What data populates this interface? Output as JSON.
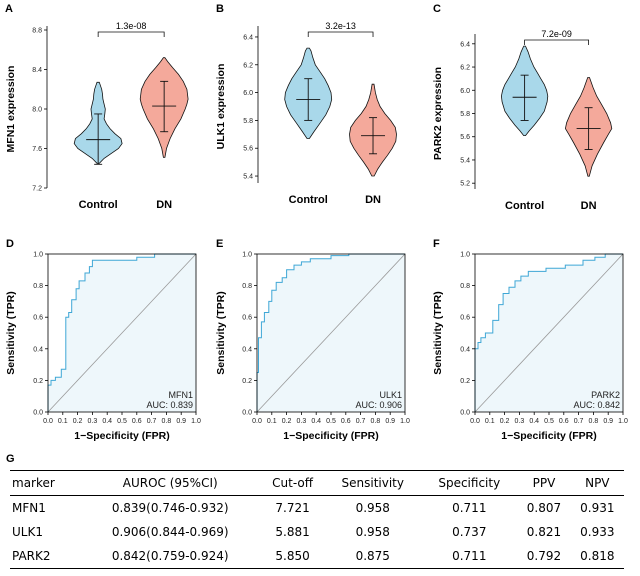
{
  "chart_data": [
    {
      "type": "violin",
      "panel": "A",
      "ylabel": "MFN1 expression",
      "categories": [
        "Control",
        "DN"
      ],
      "ylim": [
        7.2,
        8.8
      ],
      "yticks": [
        "7.2",
        "7.6",
        "8.0",
        "8.4",
        "8.8"
      ],
      "pvalue": "1.3e-08",
      "colors": [
        "#a9d8ea",
        "#f4a99b"
      ],
      "groups": [
        {
          "name": "Control",
          "min": 7.45,
          "max": 8.27,
          "mean": 7.69,
          "sd_low": 7.44,
          "sd_high": 7.95,
          "profile": [
            [
              7.45,
              0.05
            ],
            [
              7.5,
              0.25
            ],
            [
              7.55,
              0.55
            ],
            [
              7.6,
              0.85
            ],
            [
              7.65,
              1.0
            ],
            [
              7.7,
              0.95
            ],
            [
              7.75,
              0.7
            ],
            [
              7.8,
              0.5
            ],
            [
              7.85,
              0.35
            ],
            [
              7.9,
              0.25
            ],
            [
              7.95,
              0.28
            ],
            [
              8.0,
              0.3
            ],
            [
              8.05,
              0.25
            ],
            [
              8.1,
              0.2
            ],
            [
              8.15,
              0.18
            ],
            [
              8.2,
              0.15
            ],
            [
              8.27,
              0.05
            ]
          ]
        },
        {
          "name": "DN",
          "min": 7.51,
          "max": 8.52,
          "mean": 8.03,
          "sd_low": 7.77,
          "sd_high": 8.28,
          "profile": [
            [
              7.51,
              0.03
            ],
            [
              7.6,
              0.1
            ],
            [
              7.7,
              0.25
            ],
            [
              7.8,
              0.45
            ],
            [
              7.9,
              0.7
            ],
            [
              8.0,
              0.88
            ],
            [
              8.05,
              0.95
            ],
            [
              8.1,
              1.0
            ],
            [
              8.2,
              0.95
            ],
            [
              8.28,
              0.8
            ],
            [
              8.35,
              0.6
            ],
            [
              8.42,
              0.35
            ],
            [
              8.48,
              0.15
            ],
            [
              8.52,
              0.03
            ]
          ]
        }
      ]
    },
    {
      "type": "violin",
      "panel": "B",
      "ylabel": "ULK1 expression",
      "categories": [
        "Control",
        "DN"
      ],
      "ylim": [
        5.35,
        6.45
      ],
      "yticks": [
        "5.4",
        "5.6",
        "5.8",
        "6.0",
        "6.2",
        "6.4"
      ],
      "pvalue": "3.2e-13",
      "colors": [
        "#a9d8ea",
        "#f4a99b"
      ],
      "groups": [
        {
          "name": "Control",
          "min": 5.67,
          "max": 6.32,
          "mean": 5.95,
          "sd_low": 5.8,
          "sd_high": 6.1,
          "profile": [
            [
              5.67,
              0.05
            ],
            [
              5.72,
              0.25
            ],
            [
              5.78,
              0.5
            ],
            [
              5.84,
              0.75
            ],
            [
              5.9,
              0.92
            ],
            [
              5.95,
              1.0
            ],
            [
              6.0,
              0.97
            ],
            [
              6.05,
              0.85
            ],
            [
              6.1,
              0.7
            ],
            [
              6.15,
              0.5
            ],
            [
              6.2,
              0.3
            ],
            [
              6.25,
              0.2
            ],
            [
              6.3,
              0.12
            ],
            [
              6.32,
              0.05
            ]
          ]
        },
        {
          "name": "DN",
          "min": 5.4,
          "max": 6.06,
          "mean": 5.69,
          "sd_low": 5.56,
          "sd_high": 5.82,
          "profile": [
            [
              5.4,
              0.05
            ],
            [
              5.45,
              0.2
            ],
            [
              5.5,
              0.4
            ],
            [
              5.55,
              0.62
            ],
            [
              5.6,
              0.82
            ],
            [
              5.65,
              0.97
            ],
            [
              5.7,
              1.0
            ],
            [
              5.75,
              0.95
            ],
            [
              5.8,
              0.75
            ],
            [
              5.85,
              0.5
            ],
            [
              5.9,
              0.3
            ],
            [
              5.95,
              0.18
            ],
            [
              6.0,
              0.1
            ],
            [
              6.06,
              0.04
            ]
          ]
        }
      ]
    },
    {
      "type": "violin",
      "panel": "C",
      "ylabel": "PARK2 expression",
      "categories": [
        "Control",
        "DN"
      ],
      "ylim": [
        5.15,
        6.45
      ],
      "yticks": [
        "5.2",
        "5.4",
        "5.6",
        "5.8",
        "6.0",
        "6.2",
        "6.4"
      ],
      "pvalue": "7.2e-09",
      "colors": [
        "#a9d8ea",
        "#f4a99b"
      ],
      "groups": [
        {
          "name": "Control",
          "min": 5.61,
          "max": 6.38,
          "mean": 5.94,
          "sd_low": 5.74,
          "sd_high": 6.13,
          "profile": [
            [
              5.61,
              0.04
            ],
            [
              5.65,
              0.2
            ],
            [
              5.7,
              0.42
            ],
            [
              5.76,
              0.65
            ],
            [
              5.82,
              0.85
            ],
            [
              5.9,
              0.97
            ],
            [
              5.95,
              1.0
            ],
            [
              6.0,
              0.95
            ],
            [
              6.05,
              0.85
            ],
            [
              6.1,
              0.7
            ],
            [
              6.15,
              0.55
            ],
            [
              6.2,
              0.4
            ],
            [
              6.27,
              0.25
            ],
            [
              6.33,
              0.15
            ],
            [
              6.38,
              0.04
            ]
          ]
        },
        {
          "name": "DN",
          "min": 5.26,
          "max": 6.11,
          "mean": 5.67,
          "sd_low": 5.49,
          "sd_high": 5.85,
          "profile": [
            [
              5.26,
              0.03
            ],
            [
              5.35,
              0.15
            ],
            [
              5.45,
              0.38
            ],
            [
              5.55,
              0.65
            ],
            [
              5.62,
              0.85
            ],
            [
              5.67,
              1.0
            ],
            [
              5.72,
              0.95
            ],
            [
              5.8,
              0.78
            ],
            [
              5.88,
              0.55
            ],
            [
              5.95,
              0.35
            ],
            [
              6.02,
              0.2
            ],
            [
              6.11,
              0.04
            ]
          ]
        }
      ]
    },
    {
      "type": "line",
      "panel": "D",
      "xlabel": "1−Specificity (FPR)",
      "ylabel": "Sensitivity (TPR)",
      "xlim": [
        0,
        1
      ],
      "ylim": [
        0,
        1
      ],
      "xticks": [
        "0.0",
        "0.1",
        "0.2",
        "0.3",
        "0.4",
        "0.5",
        "0.6",
        "0.7",
        "0.8",
        "0.9",
        "1.0"
      ],
      "yticks": [
        "0.0",
        "0.2",
        "0.4",
        "0.6",
        "0.8",
        "1.0"
      ],
      "legend": {
        "marker": "MFN1",
        "auc": "AUC: 0.839"
      },
      "series": [
        {
          "name": "MFN1",
          "x": [
            0,
            0,
            0.02,
            0.02,
            0.05,
            0.05,
            0.09,
            0.09,
            0.12,
            0.12,
            0.14,
            0.14,
            0.16,
            0.16,
            0.19,
            0.19,
            0.21,
            0.21,
            0.25,
            0.25,
            0.28,
            0.28,
            0.3,
            0.3,
            0.6,
            0.6,
            0.72,
            0.72,
            1.0
          ],
          "y": [
            0,
            0.17,
            0.17,
            0.2,
            0.2,
            0.22,
            0.22,
            0.27,
            0.27,
            0.6,
            0.6,
            0.63,
            0.63,
            0.71,
            0.71,
            0.78,
            0.78,
            0.83,
            0.83,
            0.88,
            0.88,
            0.92,
            0.92,
            0.96,
            0.96,
            0.98,
            0.98,
            1.0,
            1.0
          ]
        }
      ]
    },
    {
      "type": "line",
      "panel": "E",
      "xlabel": "1−Specificity (FPR)",
      "ylabel": "Sensitivity (TPR)",
      "xlim": [
        0,
        1
      ],
      "ylim": [
        0,
        1
      ],
      "xticks": [
        "0.0",
        "0.1",
        "0.2",
        "0.3",
        "0.4",
        "0.5",
        "0.6",
        "0.7",
        "0.8",
        "0.9",
        "1.0"
      ],
      "yticks": [
        "0.0",
        "0.2",
        "0.4",
        "0.6",
        "0.8",
        "1.0"
      ],
      "legend": {
        "marker": "ULK1",
        "auc": "AUC: 0.906"
      },
      "series": [
        {
          "name": "ULK1",
          "x": [
            0,
            0,
            0.01,
            0.01,
            0.03,
            0.03,
            0.05,
            0.05,
            0.08,
            0.08,
            0.1,
            0.1,
            0.13,
            0.13,
            0.17,
            0.17,
            0.2,
            0.2,
            0.25,
            0.25,
            0.3,
            0.3,
            0.36,
            0.36,
            0.5,
            0.5,
            0.62,
            0.62,
            1.0
          ],
          "y": [
            0,
            0.25,
            0.25,
            0.47,
            0.47,
            0.57,
            0.57,
            0.63,
            0.63,
            0.7,
            0.7,
            0.77,
            0.77,
            0.82,
            0.82,
            0.85,
            0.85,
            0.9,
            0.9,
            0.93,
            0.93,
            0.95,
            0.95,
            0.97,
            0.97,
            0.99,
            0.99,
            1.0,
            1.0
          ]
        }
      ]
    },
    {
      "type": "line",
      "panel": "F",
      "xlabel": "1−Specificity (FPR)",
      "ylabel": "Sensitivity (TPR)",
      "xlim": [
        0,
        1
      ],
      "ylim": [
        0,
        1
      ],
      "xticks": [
        "0.0",
        "0.1",
        "0.2",
        "0.3",
        "0.4",
        "0.5",
        "0.6",
        "0.7",
        "0.8",
        "0.9",
        "1.0"
      ],
      "yticks": [
        "0.0",
        "0.2",
        "0.4",
        "0.6",
        "0.8",
        "1.0"
      ],
      "legend": {
        "marker": "PARK2",
        "auc": "AUC: 0.842"
      },
      "series": [
        {
          "name": "PARK2",
          "x": [
            0,
            0,
            0.02,
            0.02,
            0.04,
            0.04,
            0.07,
            0.07,
            0.12,
            0.12,
            0.16,
            0.16,
            0.19,
            0.19,
            0.23,
            0.23,
            0.27,
            0.27,
            0.31,
            0.31,
            0.36,
            0.36,
            0.48,
            0.48,
            0.61,
            0.61,
            0.73,
            0.73,
            0.81,
            0.81,
            0.88,
            0.88,
            1.0
          ],
          "y": [
            0,
            0.4,
            0.4,
            0.44,
            0.44,
            0.47,
            0.47,
            0.5,
            0.5,
            0.58,
            0.58,
            0.68,
            0.68,
            0.75,
            0.75,
            0.79,
            0.79,
            0.83,
            0.83,
            0.86,
            0.86,
            0.89,
            0.89,
            0.91,
            0.91,
            0.93,
            0.93,
            0.96,
            0.96,
            0.98,
            0.98,
            1.0,
            1.0
          ]
        }
      ]
    },
    {
      "type": "table",
      "panel": "G",
      "columns": [
        "marker",
        "AUROC (95%CI)",
        "Cut-off",
        "Sensitivity",
        "Specificity",
        "PPV",
        "NPV"
      ],
      "rows": [
        [
          "MFN1",
          "0.839(0.746-0.932)",
          "7.721",
          "0.958",
          "0.711",
          "0.807",
          "0.931"
        ],
        [
          "ULK1",
          "0.906(0.844-0.969)",
          "5.881",
          "0.958",
          "0.737",
          "0.821",
          "0.933"
        ],
        [
          "PARK2",
          "0.842(0.759-0.924)",
          "5.850",
          "0.875",
          "0.711",
          "0.792",
          "0.818"
        ]
      ]
    }
  ],
  "colors": {
    "control": "#a9d8ea",
    "dn": "#f4a99b",
    "roc_line": "#3fa7d6",
    "roc_fill": "#eef7fb",
    "diagonal": "#9a9a9a"
  }
}
